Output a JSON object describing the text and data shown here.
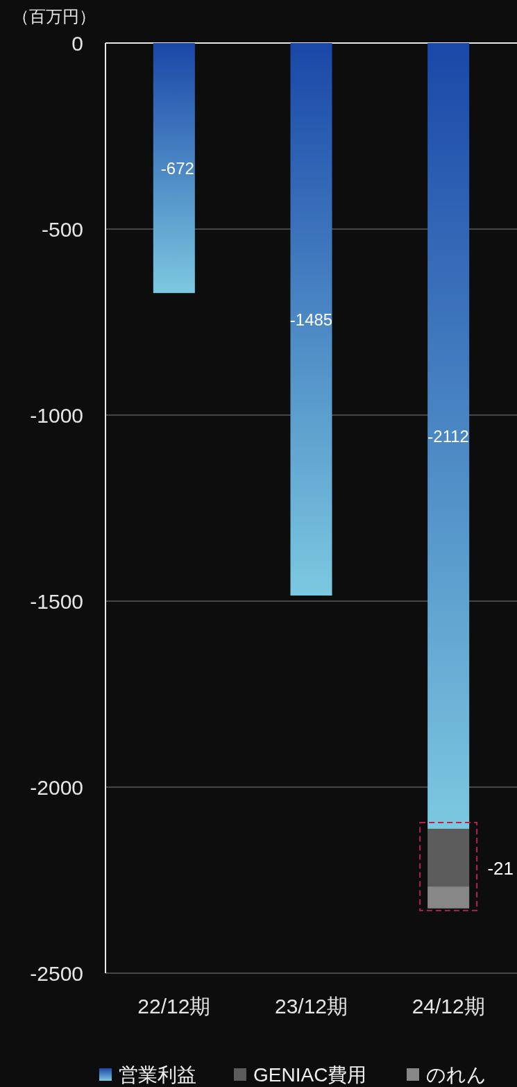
{
  "chart_data": {
    "type": "bar",
    "stacked": true,
    "ylabel": "（百万円）",
    "categories": [
      "22/12期",
      "23/12期",
      "24/12期"
    ],
    "series": [
      {
        "name": "営業利益",
        "color": "#1a47a8",
        "values": [
          -672,
          -1485,
          -2112
        ],
        "value_labels": [
          "-672",
          "-1485",
          "-2112"
        ]
      },
      {
        "name": "GENIAC費用",
        "color": "#5c5c5c",
        "values": [
          null,
          null,
          -155
        ]
      },
      {
        "name": "のれん",
        "color": "#878787",
        "values": [
          null,
          null,
          -59
        ]
      }
    ],
    "ylim": [
      -2500,
      0
    ],
    "yticks": [
      0,
      -500,
      -1000,
      -1500,
      -2000,
      -2500
    ],
    "grid": "y",
    "legend": "bottom",
    "annotations": [
      "-21"
    ]
  }
}
